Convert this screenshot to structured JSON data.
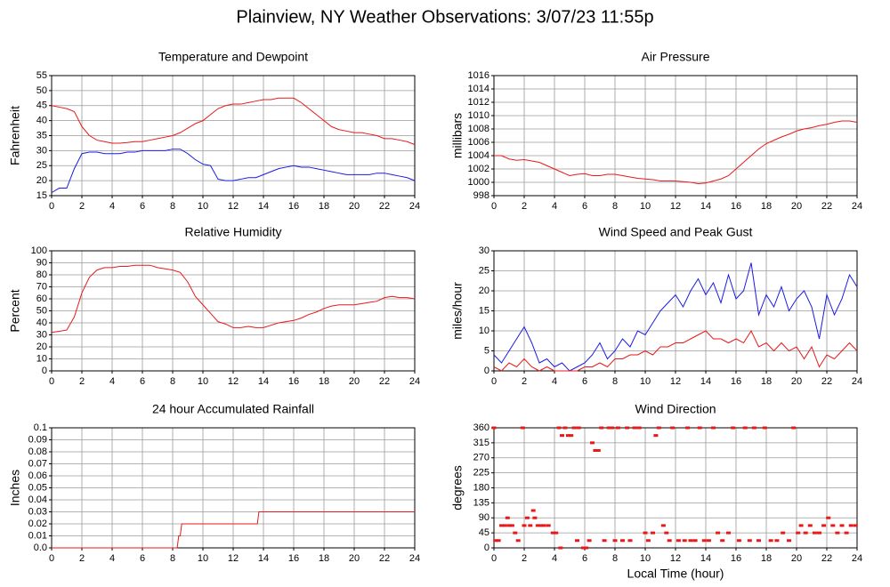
{
  "title": "Plainview, NY Weather Observations: 3/07/23 11:55p",
  "chart_data": [
    {
      "type": "line",
      "title": "Temperature and Dewpoint",
      "ylabel": "Fahrenheit",
      "x": [
        0,
        0.5,
        1,
        1.5,
        2,
        2.5,
        3,
        3.5,
        4,
        4.5,
        5,
        5.5,
        6,
        6.5,
        7,
        7.5,
        8,
        8.5,
        9,
        9.5,
        10,
        10.5,
        11,
        11.5,
        12,
        12.5,
        13,
        13.5,
        14,
        14.5,
        15,
        15.5,
        16,
        16.5,
        17,
        17.5,
        18,
        18.5,
        19,
        19.5,
        20,
        20.5,
        21,
        21.5,
        22,
        22.5,
        23,
        23.5,
        24
      ],
      "series": [
        {
          "color": "#e8191a",
          "values": [
            45,
            44.5,
            44,
            43,
            38,
            35,
            33.5,
            33,
            32.5,
            32.5,
            32.7,
            33,
            33,
            33.5,
            34,
            34.5,
            35,
            36,
            37.5,
            39,
            40,
            42,
            44,
            45,
            45.5,
            45.5,
            46,
            46.5,
            47,
            47,
            47.5,
            47.5,
            47.5,
            46,
            44,
            42,
            40,
            38,
            37,
            36.5,
            36,
            36,
            35.5,
            35,
            34,
            34,
            33.5,
            33,
            32
          ]
        },
        {
          "color": "#1a1ae8",
          "values": [
            16,
            17.5,
            17.5,
            24,
            29,
            29.5,
            29.5,
            29,
            29,
            29,
            29.5,
            29.5,
            30,
            30,
            30,
            30,
            30.5,
            30.5,
            29,
            27,
            25.5,
            25,
            20.5,
            20,
            20,
            20.5,
            21,
            21,
            22,
            23,
            24,
            24.5,
            25,
            24.5,
            24.5,
            24,
            23.5,
            23,
            22.5,
            22,
            22,
            22,
            22,
            22.5,
            22.5,
            22,
            21.5,
            21,
            20
          ]
        }
      ],
      "xlim": [
        0,
        24
      ],
      "xticks": [
        0,
        2,
        4,
        6,
        8,
        10,
        12,
        14,
        16,
        18,
        20,
        22,
        24
      ],
      "ylim": [
        15,
        55
      ],
      "yticks": [
        15,
        20,
        25,
        30,
        35,
        40,
        45,
        50,
        55
      ],
      "grid": true
    },
    {
      "type": "line",
      "title": "Air Pressure",
      "ylabel": "millibars",
      "x": [
        0,
        0.5,
        1,
        1.5,
        2,
        2.5,
        3,
        3.5,
        4,
        4.5,
        5,
        5.5,
        6,
        6.5,
        7,
        7.5,
        8,
        8.5,
        9,
        9.5,
        10,
        10.5,
        11,
        11.5,
        12,
        12.5,
        13,
        13.5,
        14,
        14.5,
        15,
        15.5,
        16,
        16.5,
        17,
        17.5,
        18,
        18.5,
        19,
        19.5,
        20,
        20.5,
        21,
        21.5,
        22,
        22.5,
        23,
        23.5,
        24
      ],
      "series": [
        {
          "color": "#e8191a",
          "values": [
            1004,
            1004,
            1003.5,
            1003.3,
            1003.4,
            1003.2,
            1003,
            1002.5,
            1002,
            1001.5,
            1001,
            1001.2,
            1001.3,
            1001,
            1001,
            1001.2,
            1001.2,
            1001,
            1000.8,
            1000.6,
            1000.5,
            1000.4,
            1000.2,
            1000.2,
            1000.2,
            1000.1,
            1000,
            999.8,
            999.9,
            1000.2,
            1000.5,
            1001,
            1002,
            1003,
            1004,
            1005,
            1005.8,
            1006.3,
            1006.8,
            1007.2,
            1007.7,
            1008,
            1008.2,
            1008.5,
            1008.7,
            1009,
            1009.2,
            1009.2,
            1009
          ]
        }
      ],
      "xlim": [
        0,
        24
      ],
      "xticks": [
        0,
        2,
        4,
        6,
        8,
        10,
        12,
        14,
        16,
        18,
        20,
        22,
        24
      ],
      "ylim": [
        998,
        1016
      ],
      "yticks": [
        998,
        1000,
        1002,
        1004,
        1006,
        1008,
        1010,
        1012,
        1014,
        1016
      ],
      "grid": true
    },
    {
      "type": "line",
      "title": "Relative Humidity",
      "ylabel": "Percent",
      "x": [
        0,
        0.5,
        1,
        1.5,
        2,
        2.5,
        3,
        3.5,
        4,
        4.5,
        5,
        5.5,
        6,
        6.5,
        7,
        7.5,
        8,
        8.5,
        9,
        9.5,
        10,
        10.5,
        11,
        11.5,
        12,
        12.5,
        13,
        13.5,
        14,
        14.5,
        15,
        15.5,
        16,
        16.5,
        17,
        17.5,
        18,
        18.5,
        19,
        19.5,
        20,
        20.5,
        21,
        21.5,
        22,
        22.5,
        23,
        23.5,
        24
      ],
      "series": [
        {
          "color": "#e8191a",
          "values": [
            32,
            33,
            34,
            45,
            65,
            78,
            84,
            86,
            86,
            87,
            87,
            88,
            88,
            88,
            86,
            85,
            84,
            82,
            74,
            62,
            55,
            48,
            41,
            39,
            36,
            36,
            37,
            36,
            36,
            38,
            40,
            41,
            42,
            44,
            47,
            49,
            52,
            54,
            55,
            55,
            55,
            56,
            57,
            58,
            61,
            62,
            61,
            61,
            60
          ]
        }
      ],
      "xlim": [
        0,
        24
      ],
      "xticks": [
        0,
        2,
        4,
        6,
        8,
        10,
        12,
        14,
        16,
        18,
        20,
        22,
        24
      ],
      "ylim": [
        0,
        100
      ],
      "yticks": [
        0,
        10,
        20,
        30,
        40,
        50,
        60,
        70,
        80,
        90,
        100
      ],
      "grid": true
    },
    {
      "type": "line",
      "title": "Wind Speed and Peak Gust",
      "ylabel": "miles/hour",
      "x": [
        0,
        0.5,
        1,
        1.5,
        2,
        2.5,
        3,
        3.5,
        4,
        4.5,
        5,
        5.5,
        6,
        6.5,
        7,
        7.5,
        8,
        8.5,
        9,
        9.5,
        10,
        10.5,
        11,
        11.5,
        12,
        12.5,
        13,
        13.5,
        14,
        14.5,
        15,
        15.5,
        16,
        16.5,
        17,
        17.5,
        18,
        18.5,
        19,
        19.5,
        20,
        20.5,
        21,
        21.5,
        22,
        22.5,
        23,
        23.5,
        24
      ],
      "series": [
        {
          "color": "#1a1ae8",
          "values": [
            4,
            2,
            5,
            8,
            11,
            7,
            2,
            3,
            1,
            2,
            0,
            1,
            2,
            4,
            7,
            3,
            5,
            8,
            6,
            10,
            9,
            12,
            15,
            17,
            19,
            16,
            20,
            23,
            19,
            22,
            17,
            24,
            18,
            20,
            27,
            14,
            19,
            16,
            21,
            15,
            18,
            20,
            16,
            8,
            19,
            14,
            18,
            24,
            21
          ]
        },
        {
          "color": "#e8191a",
          "values": [
            1,
            0,
            2,
            1,
            3,
            1,
            0,
            1,
            0,
            0,
            0,
            0,
            1,
            1,
            2,
            1,
            3,
            3,
            4,
            4,
            5,
            4,
            6,
            6,
            7,
            7,
            8,
            9,
            10,
            8,
            8,
            7,
            8,
            7,
            10,
            6,
            7,
            5,
            7,
            5,
            6,
            3,
            6,
            1,
            4,
            3,
            5,
            7,
            5
          ]
        }
      ],
      "xlim": [
        0,
        24
      ],
      "xticks": [
        0,
        2,
        4,
        6,
        8,
        10,
        12,
        14,
        16,
        18,
        20,
        22,
        24
      ],
      "ylim": [
        0,
        30
      ],
      "yticks": [
        0,
        5,
        10,
        15,
        20,
        25,
        30
      ],
      "grid": true
    },
    {
      "type": "line",
      "title": "24 hour Accumulated Rainfall",
      "ylabel": "Inches",
      "x": [
        0,
        8.3,
        8.4,
        8.5,
        8.6,
        13.6,
        13.7,
        24
      ],
      "series": [
        {
          "color": "#e8191a",
          "values": [
            0,
            0,
            0.01,
            0.01,
            0.02,
            0.02,
            0.03,
            0.03
          ]
        }
      ],
      "xlim": [
        0,
        24
      ],
      "xticks": [
        0,
        2,
        4,
        6,
        8,
        10,
        12,
        14,
        16,
        18,
        20,
        22,
        24
      ],
      "ylim": [
        0,
        0.1
      ],
      "yticks": [
        {
          "value": 0,
          "label": "0.0"
        },
        0.01,
        0.02,
        0.03,
        0.04,
        0.05,
        0.06,
        0.07,
        0.08,
        0.09,
        0.1
      ],
      "grid": true
    },
    {
      "type": "scatter",
      "title": "Wind Direction",
      "ylabel": "degrees",
      "xlabel": "Local Time (hour)",
      "x": [
        0.0,
        0.1,
        0.3,
        0.5,
        0.7,
        0.9,
        1.0,
        1.2,
        1.4,
        1.6,
        1.9,
        2.0,
        2.2,
        2.4,
        2.6,
        2.7,
        2.9,
        3.1,
        3.3,
        3.6,
        3.9,
        4.1,
        4.3,
        4.4,
        4.5,
        4.7,
        4.9,
        5.1,
        5.3,
        5.5,
        5.6,
        5.9,
        6.1,
        6.3,
        6.5,
        6.7,
        6.9,
        7.1,
        7.3,
        7.6,
        7.8,
        8.0,
        8.2,
        8.5,
        8.8,
        9.0,
        9.3,
        9.6,
        10.0,
        10.2,
        10.5,
        10.7,
        10.9,
        11.2,
        11.4,
        11.6,
        11.8,
        12.2,
        12.6,
        12.8,
        13.0,
        13.3,
        13.6,
        13.9,
        14.2,
        14.5,
        14.8,
        15.1,
        15.5,
        15.8,
        16.2,
        16.6,
        16.9,
        17.2,
        17.5,
        17.9,
        18.3,
        18.7,
        19.1,
        19.5,
        19.8,
        20.1,
        20.3,
        20.6,
        20.9,
        21.2,
        21.5,
        21.8,
        22.1,
        22.4,
        22.7,
        23.0,
        23.3,
        23.6,
        23.9
      ],
      "series": [
        {
          "color": "#e8191a",
          "values": [
            360,
            22,
            22,
            67,
            67,
            90,
            67,
            67,
            45,
            22,
            360,
            67,
            90,
            67,
            112,
            90,
            67,
            67,
            67,
            67,
            45,
            45,
            360,
            0,
            337,
            360,
            337,
            337,
            360,
            22,
            360,
            0,
            0,
            22,
            315,
            292,
            292,
            360,
            22,
            360,
            360,
            22,
            360,
            22,
            360,
            22,
            360,
            360,
            45,
            22,
            45,
            337,
            360,
            67,
            45,
            22,
            360,
            22,
            22,
            360,
            22,
            22,
            360,
            22,
            22,
            360,
            45,
            22,
            45,
            360,
            22,
            360,
            22,
            360,
            22,
            360,
            22,
            22,
            45,
            22,
            360,
            45,
            67,
            45,
            67,
            45,
            45,
            67,
            90,
            67,
            45,
            67,
            45,
            67,
            67
          ]
        }
      ],
      "xlim": [
        0,
        24
      ],
      "xticks": [
        0,
        2,
        4,
        6,
        8,
        10,
        12,
        14,
        16,
        18,
        20,
        22,
        24
      ],
      "ylim": [
        0,
        360
      ],
      "yticks": [
        0,
        45,
        90,
        135,
        180,
        225,
        270,
        315,
        360
      ],
      "grid": true
    }
  ]
}
